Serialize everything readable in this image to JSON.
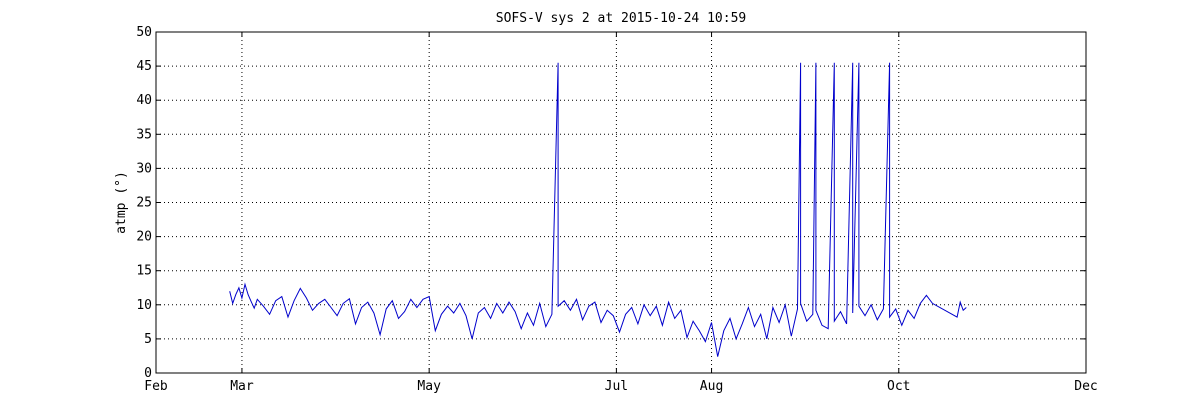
{
  "chart_data": {
    "type": "line",
    "title": "SOFS-V sys 2 at 2015-10-24 10:59",
    "xlabel": "",
    "ylabel": "atmp (°)",
    "ylim": [
      0,
      50
    ],
    "xlim": [
      "2015-02-01",
      "2015-12-01"
    ],
    "x_ticks": [
      {
        "date": "2015-02-01",
        "label": "Feb"
      },
      {
        "date": "2015-03-01",
        "label": "Mar"
      },
      {
        "date": "2015-05-01",
        "label": "May"
      },
      {
        "date": "2015-07-01",
        "label": "Jul"
      },
      {
        "date": "2015-08-01",
        "label": "Aug"
      },
      {
        "date": "2015-10-01",
        "label": "Oct"
      },
      {
        "date": "2015-12-01",
        "label": "Dec"
      }
    ],
    "y_ticks": [
      0,
      5,
      10,
      15,
      20,
      25,
      30,
      35,
      40,
      45,
      50
    ],
    "grid": true,
    "line_color": "#0000cc",
    "series": [
      {
        "name": "",
        "points": [
          [
            "2015-02-25",
            12.0
          ],
          [
            "2015-02-26",
            10.2
          ],
          [
            "2015-02-27",
            11.5
          ],
          [
            "2015-02-28",
            12.5
          ],
          [
            "2015-03-01",
            11.0
          ],
          [
            "2015-03-02",
            13.0
          ],
          [
            "2015-03-03",
            11.5
          ],
          [
            "2015-03-04",
            10.5
          ],
          [
            "2015-03-05",
            9.5
          ],
          [
            "2015-03-06",
            10.8
          ],
          [
            "2015-03-08",
            9.8
          ],
          [
            "2015-03-10",
            8.6
          ],
          [
            "2015-03-12",
            10.6
          ],
          [
            "2015-03-14",
            11.2
          ],
          [
            "2015-03-16",
            8.2
          ],
          [
            "2015-03-18",
            10.6
          ],
          [
            "2015-03-20",
            12.4
          ],
          [
            "2015-03-22",
            11.0
          ],
          [
            "2015-03-24",
            9.2
          ],
          [
            "2015-03-26",
            10.2
          ],
          [
            "2015-03-28",
            10.8
          ],
          [
            "2015-03-30",
            9.6
          ],
          [
            "2015-04-01",
            8.4
          ],
          [
            "2015-04-03",
            10.2
          ],
          [
            "2015-04-05",
            10.9
          ],
          [
            "2015-04-07",
            7.2
          ],
          [
            "2015-04-09",
            9.6
          ],
          [
            "2015-04-11",
            10.4
          ],
          [
            "2015-04-13",
            8.8
          ],
          [
            "2015-04-15",
            5.6
          ],
          [
            "2015-04-17",
            9.4
          ],
          [
            "2015-04-19",
            10.6
          ],
          [
            "2015-04-21",
            8.0
          ],
          [
            "2015-04-23",
            9.0
          ],
          [
            "2015-04-25",
            10.8
          ],
          [
            "2015-04-27",
            9.6
          ],
          [
            "2015-04-29",
            10.8
          ],
          [
            "2015-05-01",
            11.2
          ],
          [
            "2015-05-03",
            6.2
          ],
          [
            "2015-05-05",
            8.6
          ],
          [
            "2015-05-07",
            9.8
          ],
          [
            "2015-05-09",
            8.8
          ],
          [
            "2015-05-11",
            10.2
          ],
          [
            "2015-05-13",
            8.4
          ],
          [
            "2015-05-15",
            5.0
          ],
          [
            "2015-05-17",
            8.8
          ],
          [
            "2015-05-19",
            9.6
          ],
          [
            "2015-05-21",
            8.0
          ],
          [
            "2015-05-23",
            10.2
          ],
          [
            "2015-05-25",
            8.8
          ],
          [
            "2015-05-27",
            10.4
          ],
          [
            "2015-05-29",
            9.0
          ],
          [
            "2015-05-31",
            6.5
          ],
          [
            "2015-06-02",
            8.8
          ],
          [
            "2015-06-04",
            7.0
          ],
          [
            "2015-06-06",
            10.2
          ],
          [
            "2015-06-08",
            6.8
          ],
          [
            "2015-06-10",
            8.6
          ],
          [
            "2015-06-12",
            45.5
          ],
          [
            "2015-06-12",
            9.8
          ],
          [
            "2015-06-14",
            10.6
          ],
          [
            "2015-06-16",
            9.2
          ],
          [
            "2015-06-18",
            10.8
          ],
          [
            "2015-06-20",
            7.8
          ],
          [
            "2015-06-22",
            9.8
          ],
          [
            "2015-06-24",
            10.4
          ],
          [
            "2015-06-26",
            7.4
          ],
          [
            "2015-06-28",
            9.2
          ],
          [
            "2015-06-30",
            8.4
          ],
          [
            "2015-07-02",
            6.0
          ],
          [
            "2015-07-04",
            8.6
          ],
          [
            "2015-07-06",
            9.6
          ],
          [
            "2015-07-08",
            7.2
          ],
          [
            "2015-07-10",
            10.0
          ],
          [
            "2015-07-12",
            8.4
          ],
          [
            "2015-07-14",
            9.8
          ],
          [
            "2015-07-16",
            7.0
          ],
          [
            "2015-07-18",
            10.4
          ],
          [
            "2015-07-20",
            8.0
          ],
          [
            "2015-07-22",
            9.2
          ],
          [
            "2015-07-24",
            5.2
          ],
          [
            "2015-07-26",
            7.6
          ],
          [
            "2015-07-28",
            6.2
          ],
          [
            "2015-07-30",
            4.6
          ],
          [
            "2015-08-01",
            7.4
          ],
          [
            "2015-08-03",
            2.4
          ],
          [
            "2015-08-05",
            6.2
          ],
          [
            "2015-08-07",
            8.0
          ],
          [
            "2015-08-09",
            5.0
          ],
          [
            "2015-08-11",
            7.2
          ],
          [
            "2015-08-13",
            9.6
          ],
          [
            "2015-08-15",
            6.8
          ],
          [
            "2015-08-17",
            8.6
          ],
          [
            "2015-08-19",
            5.0
          ],
          [
            "2015-08-21",
            9.6
          ],
          [
            "2015-08-23",
            7.4
          ],
          [
            "2015-08-25",
            10.0
          ],
          [
            "2015-08-27",
            5.4
          ],
          [
            "2015-08-29",
            9.4
          ],
          [
            "2015-08-30",
            45.5
          ],
          [
            "2015-08-30",
            10.2
          ],
          [
            "2015-09-01",
            7.6
          ],
          [
            "2015-09-03",
            8.6
          ],
          [
            "2015-09-04",
            45.5
          ],
          [
            "2015-09-04",
            9.2
          ],
          [
            "2015-09-06",
            7.0
          ],
          [
            "2015-09-08",
            6.5
          ],
          [
            "2015-09-10",
            45.5
          ],
          [
            "2015-09-10",
            7.6
          ],
          [
            "2015-09-12",
            9.0
          ],
          [
            "2015-09-14",
            7.2
          ],
          [
            "2015-09-16",
            45.5
          ],
          [
            "2015-09-16",
            8.8
          ],
          [
            "2015-09-18",
            45.5
          ],
          [
            "2015-09-18",
            9.8
          ],
          [
            "2015-09-20",
            8.4
          ],
          [
            "2015-09-22",
            10.0
          ],
          [
            "2015-09-24",
            7.8
          ],
          [
            "2015-09-26",
            9.4
          ],
          [
            "2015-09-28",
            45.5
          ],
          [
            "2015-09-28",
            8.2
          ],
          [
            "2015-09-30",
            9.4
          ],
          [
            "2015-10-02",
            7.0
          ],
          [
            "2015-10-04",
            9.2
          ],
          [
            "2015-10-06",
            8.0
          ],
          [
            "2015-10-08",
            10.2
          ],
          [
            "2015-10-10",
            11.4
          ],
          [
            "2015-10-12",
            10.2
          ],
          [
            "2015-10-20",
            8.2
          ],
          [
            "2015-10-21",
            10.4
          ],
          [
            "2015-10-22",
            9.2
          ],
          [
            "2015-10-23",
            9.6
          ]
        ]
      }
    ]
  }
}
